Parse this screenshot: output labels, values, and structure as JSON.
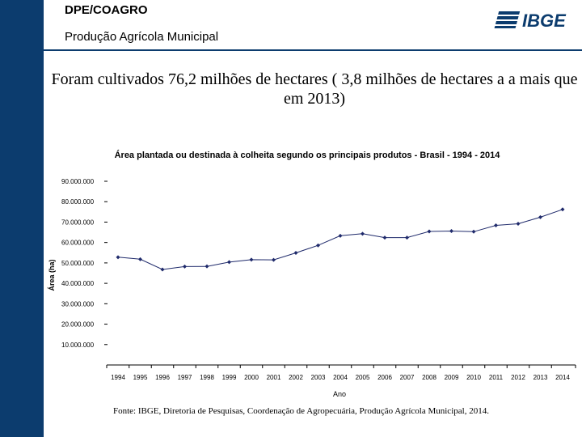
{
  "header": {
    "department": "DPE/COAGRO",
    "subtitle": "Produção Agrícola Municipal",
    "logo_text": "IBGE"
  },
  "headline": "Foram cultivados 76,2 milhões de hectares ( 3,8 milhões de hectares a a mais que em 2013)",
  "source_note": "Fonte: IBGE, Diretoria de Pesquisas, Coordenação de Agropecuária, Produção Agrícola Municipal, 2014.",
  "colors": {
    "brand": "#0c3c6e",
    "series": "#1f2a6b"
  },
  "chart_data": {
    "type": "line",
    "title": "Área plantada ou destinada à colheita segundo os principais produtos - Brasil - 1994 - 2014",
    "xlabel": "Ano",
    "ylabel": "Área (ha)",
    "ylim": [
      0,
      90000000
    ],
    "y_ticks": [
      {
        "value": 10000000,
        "label": "10.000.000"
      },
      {
        "value": 20000000,
        "label": "20.000.000"
      },
      {
        "value": 30000000,
        "label": "30.000.000"
      },
      {
        "value": 40000000,
        "label": "40.000.000"
      },
      {
        "value": 50000000,
        "label": "50.000.000"
      },
      {
        "value": 60000000,
        "label": "60.000.000"
      },
      {
        "value": 70000000,
        "label": "70.000.000"
      },
      {
        "value": 80000000,
        "label": "80.000.000"
      },
      {
        "value": 90000000,
        "label": "90.000.000"
      }
    ],
    "categories": [
      "1994",
      "1995",
      "1996",
      "1997",
      "1998",
      "1999",
      "2000",
      "2001",
      "2002",
      "2003",
      "2004",
      "2005",
      "2006",
      "2007",
      "2008",
      "2009",
      "2010",
      "2011",
      "2012",
      "2013",
      "2014"
    ],
    "series": [
      {
        "name": "Área plantada",
        "values": [
          52800000,
          51800000,
          46800000,
          48200000,
          48300000,
          50400000,
          51600000,
          51500000,
          54900000,
          58600000,
          63300000,
          64300000,
          62400000,
          62400000,
          65400000,
          65600000,
          65300000,
          68400000,
          69200000,
          72400000,
          76200000
        ]
      }
    ]
  }
}
